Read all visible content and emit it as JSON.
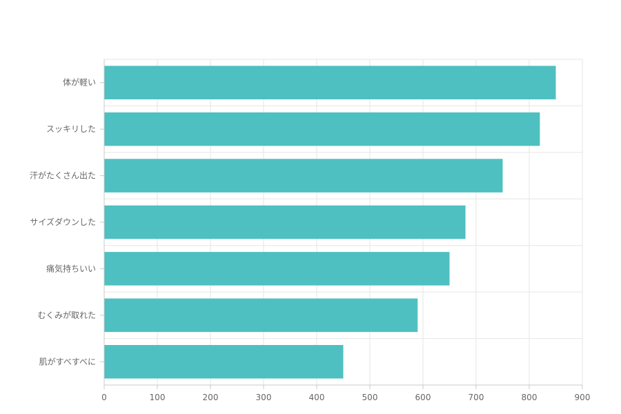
{
  "chart_data": {
    "type": "bar",
    "orientation": "horizontal",
    "categories": [
      "体が軽い",
      "スッキリした",
      "汗がたくさん出た",
      "サイズダウンした",
      "痛気持ちいい",
      "むくみが取れた",
      "肌がすべすべに"
    ],
    "values": [
      850,
      820,
      750,
      680,
      650,
      590,
      450
    ],
    "xlim": [
      0,
      900
    ],
    "xticks": [
      "0",
      "100",
      "200",
      "300",
      "400",
      "500",
      "600",
      "700",
      "800",
      "900"
    ],
    "grid": true,
    "legend": "none",
    "colors": {
      "bar": "#4ec0c1"
    }
  }
}
